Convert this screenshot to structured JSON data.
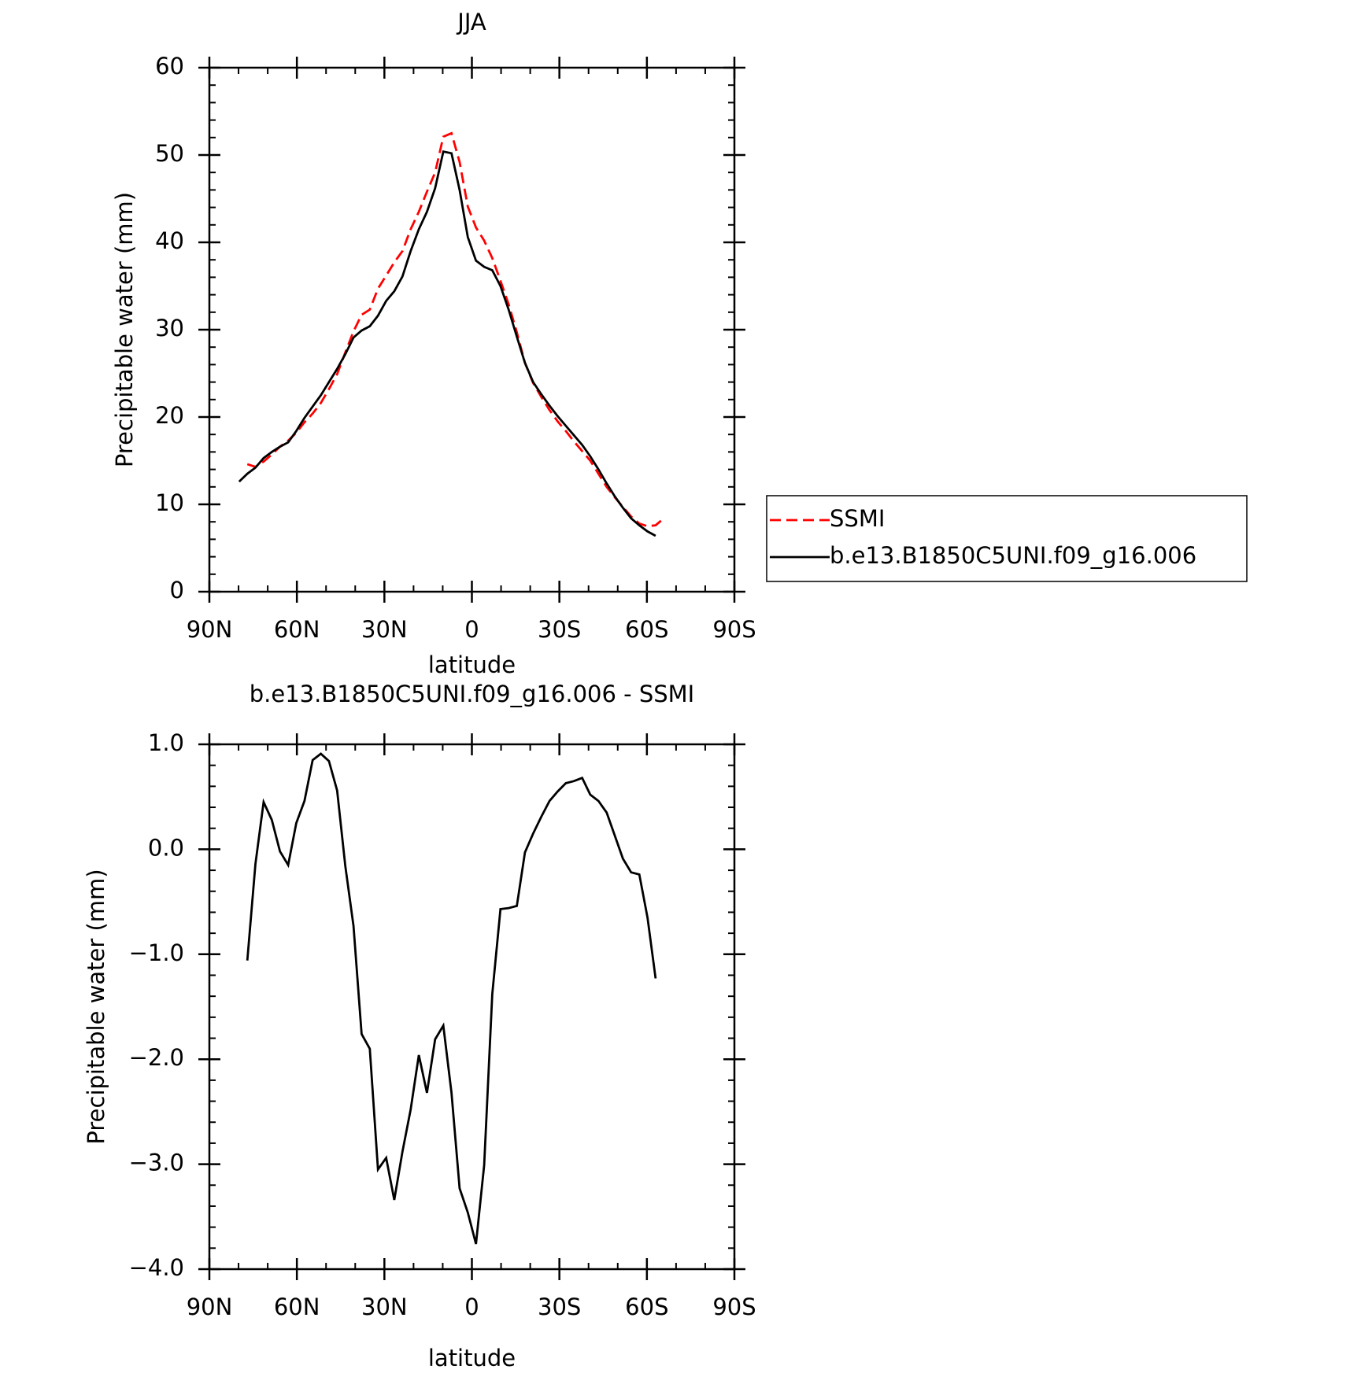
{
  "chart_data": [
    {
      "type": "line",
      "title": "JJA",
      "x_label": "latitude",
      "y_label": "Precipitable water (mm)",
      "x": [
        79.8,
        77.0,
        74.2,
        71.4,
        68.6,
        65.8,
        63.0,
        60.2,
        57.4,
        54.6,
        51.8,
        49.0,
        46.2,
        43.4,
        40.6,
        37.8,
        35.0,
        32.2,
        29.4,
        26.6,
        23.8,
        21.0,
        18.2,
        15.4,
        12.6,
        9.8,
        7.0,
        4.2,
        1.4,
        -1.4,
        -4.2,
        -7.0,
        -9.8,
        -12.6,
        -15.4,
        -18.2,
        -21.0,
        -23.8,
        -26.6,
        -29.4,
        -32.2,
        -35.0,
        -37.8,
        -40.6,
        -43.4,
        -46.2,
        -49.0,
        -51.8,
        -54.6,
        -57.4,
        -60.2,
        -63.0,
        -65.8
      ],
      "series": [
        {
          "name": "SSMI",
          "color": "#ff0000",
          "line_style": "dashed",
          "values": [
            null,
            14.6,
            14.3,
            14.9,
            15.7,
            16.6,
            17.3,
            18.2,
            19.4,
            20.4,
            21.6,
            23.2,
            24.9,
            27.4,
            29.8,
            31.7,
            32.3,
            34.7,
            36.2,
            37.7,
            39.0,
            41.5,
            43.5,
            45.8,
            48.0,
            52.1,
            52.5,
            49.2,
            44.1,
            41.7,
            40.2,
            38.2,
            35.6,
            32.9,
            29.7,
            26.2,
            23.9,
            22.3,
            20.8,
            19.5,
            18.4,
            17.2,
            16.1,
            15.0,
            13.5,
            12.0,
            10.8,
            9.7,
            8.6,
            7.8,
            7.5,
            7.6,
            8.4
          ]
        },
        {
          "name": "b.e13.B1850C5UNI.f09_g16.006",
          "color": "#000000",
          "line_style": "solid",
          "values": [
            12.6,
            13.5,
            14.2,
            15.3,
            16.0,
            16.6,
            17.1,
            18.4,
            19.9,
            21.2,
            22.5,
            24.0,
            25.5,
            27.2,
            29.1,
            29.9,
            30.4,
            31.6,
            33.3,
            34.4,
            36.1,
            39.0,
            41.5,
            43.5,
            46.2,
            50.4,
            50.2,
            46.0,
            40.6,
            37.9,
            37.2,
            36.8,
            35.0,
            32.3,
            29.2,
            26.2,
            24.0,
            22.6,
            21.3,
            20.1,
            19.0,
            17.9,
            16.8,
            15.5,
            14.0,
            12.4,
            10.9,
            9.6,
            8.4,
            7.6,
            6.9,
            6.4,
            null
          ]
        }
      ],
      "xlim": [
        90,
        -90
      ],
      "xticks": [
        {
          "value": 90,
          "label": "90N"
        },
        {
          "value": 60,
          "label": "60N"
        },
        {
          "value": 30,
          "label": "30N"
        },
        0,
        {
          "value": -30,
          "label": "30S"
        },
        {
          "value": -60,
          "label": "60S"
        },
        {
          "value": -90,
          "label": "90S"
        }
      ],
      "ylim": [
        0,
        60
      ],
      "yticks": [
        0,
        10,
        20,
        30,
        40,
        50,
        60
      ],
      "legend": "outside-right"
    },
    {
      "type": "line",
      "title": "b.e13.B1850C5UNI.f09_g16.006 - SSMI",
      "x_label": "latitude",
      "y_label": "Precipitable water (mm)",
      "x": [
        77.0,
        74.2,
        71.4,
        68.6,
        65.8,
        63.0,
        60.2,
        57.4,
        54.6,
        51.8,
        49.0,
        46.2,
        43.4,
        40.6,
        37.8,
        35.0,
        32.2,
        29.4,
        26.6,
        23.8,
        21.0,
        18.2,
        15.4,
        12.6,
        9.8,
        7.0,
        4.2,
        1.4,
        -1.4,
        -4.2,
        -7.0,
        -9.8,
        -12.6,
        -15.4,
        -18.2,
        -21.0,
        -23.8,
        -26.6,
        -29.4,
        -32.2,
        -35.0,
        -37.8,
        -40.6,
        -43.4,
        -46.2,
        -49.0,
        -51.8,
        -54.6,
        -57.4,
        -60.2,
        -63.0
      ],
      "series": [
        {
          "color": "#000000",
          "line_style": "solid",
          "values": [
            -1.06,
            -0.14,
            0.45,
            0.28,
            -0.02,
            -0.15,
            0.25,
            0.46,
            0.85,
            0.91,
            0.84,
            0.56,
            -0.16,
            -0.73,
            -1.76,
            -1.9,
            -3.05,
            -2.94,
            -3.34,
            -2.88,
            -2.48,
            -1.96,
            -2.32,
            -1.81,
            -1.68,
            -2.32,
            -3.23,
            -3.46,
            -3.76,
            -3.01,
            -1.38,
            -0.57,
            -0.56,
            -0.54,
            -0.03,
            0.15,
            0.31,
            0.46,
            0.55,
            0.63,
            0.65,
            0.68,
            0.52,
            0.46,
            0.35,
            0.13,
            -0.09,
            -0.22,
            -0.24,
            -0.65,
            -1.23
          ]
        }
      ],
      "xlim": [
        90,
        -90
      ],
      "xticks": [
        {
          "value": 90,
          "label": "90N"
        },
        {
          "value": 60,
          "label": "60N"
        },
        {
          "value": 30,
          "label": "30N"
        },
        0,
        {
          "value": -30,
          "label": "30S"
        },
        {
          "value": -60,
          "label": "60S"
        },
        {
          "value": -90,
          "label": "90S"
        }
      ],
      "ylim": [
        -4,
        1
      ],
      "yticks": [
        {
          "value": 1,
          "label": "1.0"
        },
        {
          "value": 0,
          "label": "0.0"
        },
        {
          "value": -1,
          "label": "−1.0"
        },
        {
          "value": -2,
          "label": "−2.0"
        },
        {
          "value": -3,
          "label": "−3.0"
        },
        {
          "value": -4,
          "label": "−4.0"
        }
      ]
    }
  ]
}
